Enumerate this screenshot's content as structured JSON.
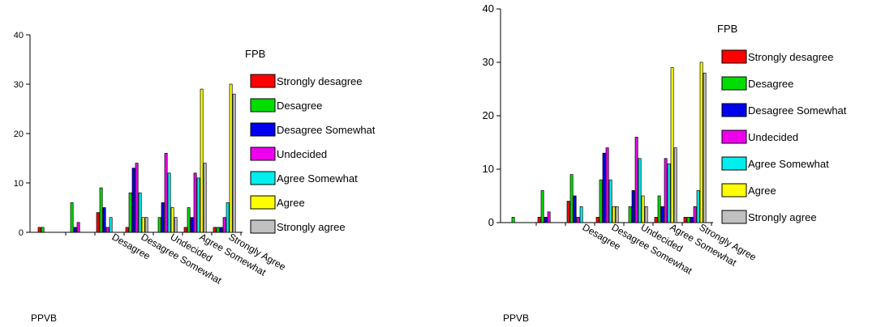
{
  "categories": [
    "",
    "",
    "Desagree",
    "Desagree Somewhat",
    "Undecided",
    "Agree Somewhat",
    "Strongly Agree"
  ],
  "series": [
    {
      "name": "Strongly desagree",
      "color": "#ff0000"
    },
    {
      "name": "Desagree",
      "color": "#00dd00"
    },
    {
      "name": "Desagree Somewhat",
      "color": "#0000ee"
    },
    {
      "name": "Undecided",
      "color": "#ee00ee"
    },
    {
      "name": "Agree Somewhat",
      "color": "#00eeee"
    },
    {
      "name": "Agree",
      "color": "#ffff00"
    },
    {
      "name": "Strongly agree",
      "color": "#c0c0c0"
    }
  ],
  "chart_data": [
    {
      "type": "bar",
      "title": "",
      "legend_title": "FPB",
      "xlabel": "PPVB",
      "ylabel": "",
      "ylim": [
        0,
        40
      ],
      "yticks": [
        0,
        10,
        20,
        30,
        40
      ],
      "grid": false,
      "legend_position": "right",
      "x_tick_labels": [
        "",
        "",
        "Desagree",
        "Desagree Somewhat",
        "Undecided",
        "Agree Somewhat",
        "Strongly Agree"
      ],
      "values": [
        [
          1,
          0,
          4,
          1,
          0,
          1,
          1
        ],
        [
          1,
          6,
          9,
          8,
          3,
          5,
          1
        ],
        [
          0,
          1,
          5,
          13,
          6,
          3,
          1
        ],
        [
          0,
          2,
          1,
          14,
          16,
          12,
          3
        ],
        [
          0,
          0,
          3,
          8,
          12,
          11,
          6
        ],
        [
          0,
          0,
          0,
          3,
          5,
          29,
          30
        ],
        [
          0,
          0,
          0,
          3,
          3,
          14,
          28
        ]
      ]
    },
    {
      "type": "bar",
      "title": "",
      "legend_title": "FPB",
      "xlabel": "PPVB",
      "ylabel": "",
      "ylim": [
        0,
        40
      ],
      "yticks": [
        0,
        10,
        20,
        30,
        40
      ],
      "grid": false,
      "legend_position": "right",
      "x_tick_labels": [
        "",
        "",
        "Desagree",
        "Desagree Somewhat",
        "Undecided",
        "Agree Somewhat",
        "Strongly Agree"
      ],
      "values": [
        [
          0,
          1,
          4,
          1,
          0,
          1,
          1
        ],
        [
          1,
          6,
          9,
          8,
          3,
          5,
          1
        ],
        [
          0,
          1,
          5,
          13,
          6,
          3,
          1
        ],
        [
          0,
          2,
          1,
          14,
          16,
          12,
          3
        ],
        [
          0,
          0,
          3,
          8,
          12,
          11,
          6
        ],
        [
          0,
          0,
          0,
          3,
          5,
          29,
          30
        ],
        [
          0,
          0,
          0,
          3,
          3,
          14,
          28
        ]
      ]
    }
  ]
}
